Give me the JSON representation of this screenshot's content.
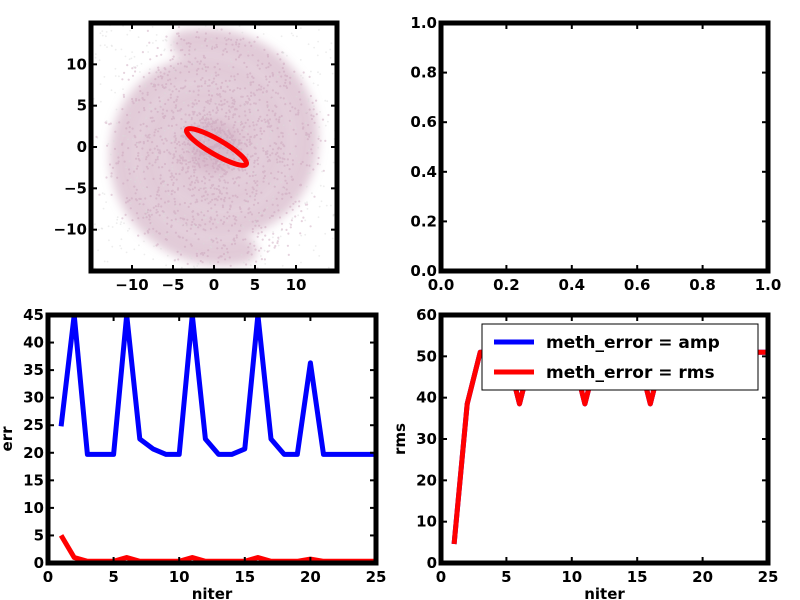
{
  "chart_data": [
    {
      "panel": "top-left",
      "type": "scatter",
      "title": "",
      "xlabel": "",
      "ylabel": "",
      "xlim": [
        -15,
        15
      ],
      "ylim": [
        -15,
        15
      ],
      "xticks": [
        -10,
        -5,
        0,
        5,
        10
      ],
      "yticks": [
        -10,
        -5,
        0,
        5,
        10
      ],
      "xticklabels": [
        "−10",
        "−5",
        "0",
        "5",
        "10"
      ],
      "yticklabels": [
        "−10",
        "−5",
        "0",
        "5",
        "10"
      ],
      "background": "two-armed spiral particle distribution (density plot)",
      "ellipse": {
        "center": [
          0.3,
          0.0
        ],
        "semi_major": 4.2,
        "semi_minor": 0.9,
        "angle_deg": -30
      },
      "colors": {
        "spiral": "#c9a0b8",
        "ellipse": "#ff0000"
      },
      "grid": false
    },
    {
      "panel": "top-right",
      "type": "line",
      "title": "",
      "xlabel": "",
      "ylabel": "",
      "xlim": [
        0,
        1
      ],
      "ylim": [
        0,
        1
      ],
      "xticks": [
        0.0,
        0.2,
        0.4,
        0.6,
        0.8,
        1.0
      ],
      "yticks": [
        0.0,
        0.2,
        0.4,
        0.6,
        0.8,
        1.0
      ],
      "xticklabels": [
        "0.0",
        "0.2",
        "0.4",
        "0.6",
        "0.8",
        "1.0"
      ],
      "yticklabels": [
        "0.0",
        "0.2",
        "0.4",
        "0.6",
        "0.8",
        "1.0"
      ],
      "series": [],
      "grid": false
    },
    {
      "panel": "bottom-left",
      "type": "line",
      "title": "",
      "xlabel": "niter",
      "ylabel": "err",
      "xlim": [
        0,
        25
      ],
      "ylim": [
        0,
        45
      ],
      "xticks": [
        0,
        5,
        10,
        15,
        20,
        25
      ],
      "yticks": [
        0,
        5,
        10,
        15,
        20,
        25,
        30,
        35,
        40,
        45
      ],
      "xticklabels": [
        "0",
        "5",
        "10",
        "15",
        "20",
        "25"
      ],
      "yticklabels": [
        "0",
        "5",
        "10",
        "15",
        "20",
        "25",
        "30",
        "35",
        "40",
        "45"
      ],
      "x": [
        1,
        2,
        3,
        4,
        5,
        6,
        7,
        8,
        9,
        10,
        11,
        12,
        13,
        14,
        15,
        16,
        17,
        18,
        19,
        20,
        21,
        22,
        23,
        24,
        25
      ],
      "series": [
        {
          "color": "#0000ff",
          "values": [
            24.8,
            45.0,
            19.7,
            19.7,
            19.7,
            45.0,
            22.5,
            20.7,
            19.7,
            19.7,
            45.0,
            22.5,
            19.7,
            19.7,
            20.7,
            45.0,
            22.5,
            19.7,
            19.7,
            36.3,
            19.7,
            19.7,
            19.7,
            19.7,
            19.7
          ]
        },
        {
          "color": "#ff0000",
          "values": [
            5.0,
            1.0,
            0.3,
            0.3,
            0.3,
            1.0,
            0.3,
            0.3,
            0.3,
            0.3,
            1.0,
            0.3,
            0.3,
            0.3,
            0.3,
            1.0,
            0.3,
            0.3,
            0.3,
            0.7,
            0.3,
            0.3,
            0.3,
            0.3,
            0.3
          ]
        }
      ],
      "grid": false
    },
    {
      "panel": "bottom-right",
      "type": "line",
      "title": "",
      "xlabel": "niter",
      "ylabel": "rms",
      "xlim": [
        0,
        25
      ],
      "ylim": [
        0,
        60
      ],
      "xticks": [
        0,
        5,
        10,
        15,
        20,
        25
      ],
      "yticks": [
        0,
        10,
        20,
        30,
        40,
        50,
        60
      ],
      "xticklabels": [
        "0",
        "5",
        "10",
        "15",
        "20",
        "25"
      ],
      "yticklabels": [
        "0",
        "10",
        "20",
        "30",
        "40",
        "50",
        "60"
      ],
      "x": [
        1,
        2,
        3,
        4,
        5,
        6,
        7,
        8,
        9,
        10,
        11,
        12,
        13,
        14,
        15,
        16,
        17,
        18,
        19,
        20,
        21,
        22,
        23,
        24,
        25
      ],
      "series": [
        {
          "name": "meth_error = amp",
          "color": "#0000ff",
          "values": [
            4.6,
            38.5,
            51.0,
            51.0,
            51.0,
            38.5,
            51.0,
            51.0,
            51.0,
            51.0,
            38.5,
            51.0,
            51.0,
            51.0,
            51.0,
            38.5,
            51.0,
            51.0,
            51.0,
            51.0,
            51.0,
            51.0,
            51.0,
            51.0,
            51.0
          ]
        },
        {
          "name": "meth_error = rms",
          "color": "#ff0000",
          "values": [
            4.6,
            38.5,
            51.0,
            51.0,
            51.0,
            38.5,
            51.0,
            51.0,
            51.0,
            51.0,
            38.5,
            51.0,
            51.0,
            51.0,
            51.0,
            38.5,
            51.0,
            51.0,
            51.0,
            51.0,
            51.0,
            51.0,
            51.0,
            51.0,
            51.0
          ]
        }
      ],
      "legend": {
        "placement": "upper-right",
        "entries": [
          "meth_error = amp",
          "meth_error = rms"
        ]
      },
      "grid": false
    }
  ]
}
